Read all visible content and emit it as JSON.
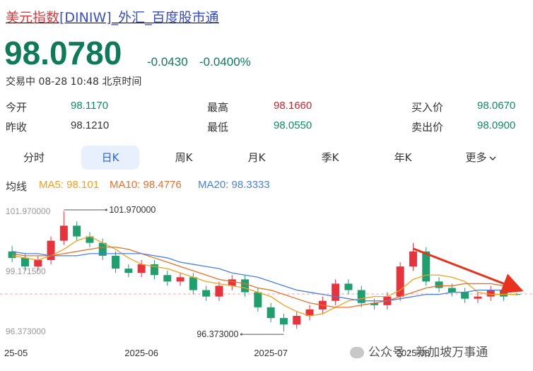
{
  "header": {
    "name": "美元指数",
    "title_rest": "[DINIW]_外汇_百度股市通",
    "price": "98.0780",
    "change": "-0.0430",
    "change_pct": "-0.0400%",
    "status": "交易中 08-28 10:48 北京时间"
  },
  "stats": [
    {
      "label": "今开",
      "value": "98.1170",
      "color": "#0f8a60"
    },
    {
      "label": "昨收",
      "value": "98.1210",
      "color": "#333333"
    },
    {
      "label": "最高",
      "value": "98.1660",
      "color": "#d6202f"
    },
    {
      "label": "最低",
      "value": "98.0550",
      "color": "#0f8a60"
    },
    {
      "label": "买入价",
      "value": "98.0670",
      "color": "#0f8a60"
    },
    {
      "label": "卖出价",
      "value": "98.0900",
      "color": "#0f8a60"
    }
  ],
  "tabs": [
    "分时",
    "日K",
    "周K",
    "月K",
    "季K",
    "年K",
    "更多"
  ],
  "active_tab": 1,
  "ma_label": "均线",
  "chart": {
    "type": "candlestick",
    "dates": [
      "25-05",
      null,
      null,
      null,
      null,
      null,
      null,
      null,
      null,
      null,
      "2025-06",
      null,
      null,
      null,
      null,
      null,
      null,
      null,
      null,
      null,
      "2025-07",
      null,
      null,
      null,
      null,
      null,
      null,
      null,
      null,
      null,
      null,
      "2025-08",
      null,
      null,
      null,
      null,
      null,
      null,
      null,
      null
    ],
    "open": [
      100.1,
      99.8,
      99.4,
      99.7,
      100.6,
      101.3,
      100.8,
      100.5,
      99.9,
      99.3,
      99.1,
      99.5,
      99.0,
      98.7,
      98.9,
      98.3,
      98.0,
      98.5,
      98.8,
      98.2,
      97.5,
      97.0,
      96.7,
      97.1,
      97.4,
      97.8,
      98.6,
      98.3,
      97.7,
      97.6,
      98.0,
      99.4,
      100.1,
      98.7,
      98.4,
      98.2,
      97.9,
      98.0,
      98.3,
      98.117
    ],
    "high": [
      100.35,
      100.0,
      99.9,
      100.8,
      101.97,
      101.5,
      101.0,
      100.7,
      100.1,
      99.5,
      99.7,
      99.7,
      99.2,
      99.1,
      99.1,
      98.5,
      98.7,
      99.0,
      99.0,
      98.4,
      97.7,
      97.2,
      97.3,
      97.6,
      98.0,
      98.8,
      98.8,
      98.5,
      97.9,
      98.2,
      99.6,
      100.5,
      100.3,
      98.9,
      98.6,
      98.4,
      98.2,
      98.5,
      98.5,
      98.166
    ],
    "low": [
      99.6,
      99.2,
      99.2,
      99.5,
      100.4,
      100.6,
      100.3,
      99.7,
      99.1,
      98.9,
      98.9,
      98.8,
      98.5,
      98.5,
      98.1,
      97.8,
      97.8,
      98.3,
      98.0,
      97.3,
      96.8,
      96.373,
      96.5,
      96.9,
      97.2,
      97.6,
      98.1,
      97.5,
      97.4,
      97.4,
      97.8,
      99.2,
      98.5,
      98.2,
      98.0,
      97.7,
      97.7,
      97.8,
      97.8,
      98.055
    ],
    "close": [
      99.8,
      99.4,
      99.7,
      100.6,
      101.3,
      100.8,
      100.5,
      99.9,
      99.3,
      99.1,
      99.5,
      99.0,
      98.7,
      98.9,
      98.3,
      98.0,
      98.5,
      98.8,
      98.2,
      97.5,
      97.0,
      96.7,
      97.1,
      97.4,
      97.8,
      98.6,
      98.3,
      97.7,
      97.6,
      98.0,
      99.4,
      100.1,
      98.7,
      98.4,
      98.2,
      97.9,
      98.0,
      98.3,
      98.0,
      98.078
    ],
    "up_color": "#e8323c",
    "down_color": "#1f9e6e",
    "series": [
      {
        "label": "MA5: 98.101",
        "color": "#f0a020",
        "values": [
          99.9,
          99.8,
          99.7,
          99.9,
          100.2,
          100.6,
          100.8,
          100.5,
          100.2,
          99.8,
          99.5,
          99.4,
          99.3,
          99.1,
          98.9,
          98.7,
          98.6,
          98.5,
          98.4,
          98.2,
          98.0,
          97.6,
          97.3,
          97.1,
          97.2,
          97.5,
          97.8,
          97.9,
          98.0,
          98.0,
          98.3,
          98.8,
          99.0,
          99.0,
          98.9,
          98.7,
          98.2,
          98.1,
          98.1,
          98.101
        ]
      },
      {
        "label": "MA10: 98.4776",
        "color": "#e8702a",
        "values": [
          100.0,
          99.9,
          99.9,
          99.9,
          100.0,
          100.1,
          100.2,
          100.3,
          100.3,
          100.2,
          100.0,
          99.8,
          99.6,
          99.4,
          99.2,
          99.0,
          98.8,
          98.7,
          98.6,
          98.4,
          98.3,
          98.1,
          97.9,
          97.7,
          97.6,
          97.5,
          97.5,
          97.6,
          97.7,
          97.8,
          98.0,
          98.2,
          98.4,
          98.5,
          98.5,
          98.6,
          98.6,
          98.6,
          98.5,
          98.4776
        ]
      },
      {
        "label": "MA20: 98.3333",
        "color": "#4a7fe0",
        "values": [
          100.1,
          100.0,
          100.0,
          99.9,
          99.9,
          99.9,
          100.0,
          100.0,
          100.0,
          100.0,
          100.0,
          99.9,
          99.8,
          99.6,
          99.5,
          99.4,
          99.3,
          99.1,
          99.0,
          98.9,
          98.7,
          98.5,
          98.3,
          98.2,
          98.1,
          98.0,
          97.9,
          97.8,
          97.8,
          97.8,
          97.9,
          98.0,
          98.1,
          98.1,
          98.2,
          98.2,
          98.3,
          98.3,
          98.3,
          98.3333
        ]
      }
    ],
    "ylim": [
      95.85,
      102.43
    ],
    "yticks": [
      {
        "value": 101.97,
        "label": "101.970000"
      },
      {
        "value": 99.1715,
        "label": "99.171500"
      },
      {
        "value": 96.373,
        "label": "96.373000"
      }
    ],
    "reference_line": 98.121,
    "annotations": [
      {
        "value": 101.97,
        "label": "101.970000"
      },
      {
        "value": 96.373,
        "label": "96.373000"
      }
    ]
  },
  "watermark": "公众号 · 新加坡万事通"
}
